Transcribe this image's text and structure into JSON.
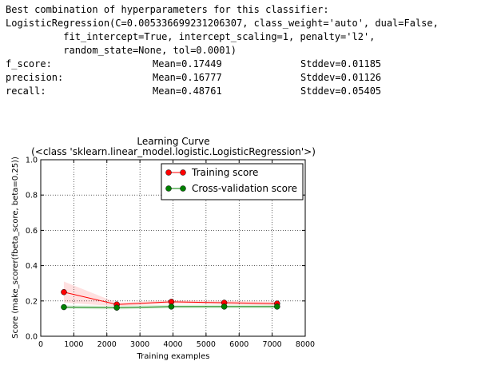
{
  "console": {
    "header": "Best combination of hyperparameters for this classifier:",
    "params": [
      "LogisticRegression(C=0.005336699231206307, class_weight='auto', dual=False,",
      "          fit_intercept=True, intercept_scaling=1, penalty='l2',",
      "          random_state=None, tol=0.0001)"
    ],
    "metrics": [
      {
        "name": "f_score:",
        "mean": "Mean=0.17449",
        "std": "Stddev=0.01185"
      },
      {
        "name": "precision:",
        "mean": "Mean=0.16777",
        "std": "Stddev=0.01126"
      },
      {
        "name": "recall:",
        "mean": "Mean=0.48761",
        "std": "Stddev=0.05405"
      }
    ]
  },
  "chart_data": {
    "type": "line",
    "title": "Learning Curve",
    "subtitle": "(<class 'sklearn.linear_model.logistic.LogisticRegression'>)",
    "xlabel": "Training examples",
    "ylabel": "Score (make_scorer(fbeta_score, beta=0.25))",
    "xlim": [
      0,
      8000
    ],
    "ylim": [
      0.0,
      1.0
    ],
    "xticks": [
      0,
      1000,
      2000,
      3000,
      4000,
      5000,
      6000,
      7000,
      8000
    ],
    "yticks": [
      0.0,
      0.2,
      0.4,
      0.6,
      0.8,
      1.0
    ],
    "ytick_labels": [
      "0.0",
      "0.2",
      "0.4",
      "0.6",
      "0.8",
      "1.0"
    ],
    "grid": true,
    "legend_position": "upper-right",
    "x": [
      700,
      2300,
      3950,
      5550,
      7150
    ],
    "series": [
      {
        "name": "Training score",
        "color": "#ff0000",
        "values": [
          0.25,
          0.18,
          0.195,
          0.19,
          0.185
        ],
        "band_low": [
          0.19,
          0.17,
          0.185,
          0.18,
          0.175
        ],
        "band_high": [
          0.31,
          0.19,
          0.205,
          0.2,
          0.195
        ]
      },
      {
        "name": "Cross-validation score",
        "color": "#008000",
        "values": [
          0.165,
          0.162,
          0.168,
          0.168,
          0.168
        ],
        "band_low": [
          0.155,
          0.152,
          0.158,
          0.158,
          0.158
        ],
        "band_high": [
          0.175,
          0.172,
          0.178,
          0.178,
          0.178
        ]
      }
    ]
  }
}
